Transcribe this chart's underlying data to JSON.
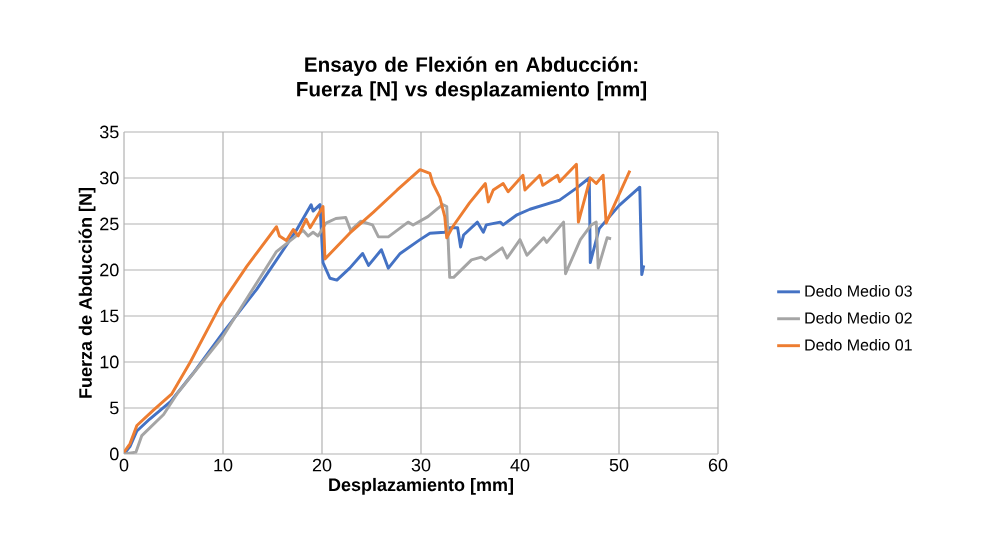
{
  "chart_data": {
    "type": "line",
    "title": "Ensayo de Flexión en Abducción: Fuerza [N] vs desplazamiento [mm]",
    "xlabel": "Desplazamiento [mm]",
    "ylabel": "Fuerza de Abducción [N]",
    "xlim": [
      0,
      60
    ],
    "xticks": [
      0,
      10,
      20,
      30,
      40,
      50,
      60
    ],
    "ylim": [
      0,
      35
    ],
    "yticks": [
      0,
      5,
      10,
      15,
      20,
      25,
      30,
      35
    ],
    "grid": true,
    "legend": "right",
    "marker": "none",
    "line_style": "solid",
    "series": [
      {
        "name": "Dedo Medio 03",
        "color": "#4472c4",
        "x": [
          0,
          0.6,
          1.3,
          2.6,
          4.7,
          7.0,
          10,
          13.4,
          16.1,
          17.4,
          18.9,
          19.1,
          19.8,
          20.1,
          20.8,
          21.5,
          22.8,
          24.1,
          24.7,
          26.0,
          26.7,
          27.9,
          29.9,
          30.9,
          32.4,
          32.9,
          33.7,
          34.0,
          34.3,
          35.7,
          36.3,
          36.6,
          38.0,
          38.3,
          39.7,
          41.0,
          44.0,
          45.7,
          47.0,
          47.1,
          48.0,
          50.0,
          52.1,
          52.3,
          52.5
        ],
        "values": [
          0,
          0.8,
          2.5,
          3.8,
          5.7,
          8.8,
          13.2,
          17.9,
          22.2,
          24.3,
          27.1,
          26.4,
          27.1,
          20.8,
          19.1,
          18.9,
          20.2,
          21.8,
          20.5,
          22.2,
          20.2,
          21.8,
          23.3,
          24.0,
          24.1,
          24.6,
          24.6,
          22.5,
          23.8,
          25.2,
          24.1,
          24.9,
          25.2,
          24.9,
          26.0,
          26.6,
          27.6,
          28.9,
          30.0,
          20.8,
          24.5,
          27.0,
          29.0,
          19.5,
          20.5
        ]
      },
      {
        "name": "Dedo Medio 02",
        "color": "#a5a5a5",
        "x": [
          0,
          1.2,
          1.8,
          4.0,
          5.4,
          10,
          15.4,
          18.1,
          18.6,
          19.1,
          19.6,
          20.4,
          21.4,
          22.4,
          22.9,
          23.9,
          25.1,
          25.7,
          26.7,
          28.7,
          29.2,
          30.7,
          31.7,
          32.2,
          32.6,
          32.9,
          33.3,
          35.1,
          36.1,
          36.5,
          38.2,
          38.7,
          40.0,
          40.7,
          42.4,
          42.7,
          44.4,
          44.6,
          46.1,
          47.2,
          47.7,
          47.9,
          48.8,
          49.2
        ],
        "values": [
          0,
          0.2,
          2.0,
          4.3,
          6.6,
          12.8,
          22.0,
          24.3,
          23.7,
          24.1,
          23.7,
          25.1,
          25.6,
          25.7,
          24.3,
          25.3,
          24.9,
          23.6,
          23.6,
          25.2,
          24.9,
          25.8,
          26.7,
          27.1,
          26.9,
          19.2,
          19.2,
          21.1,
          21.4,
          21.1,
          22.4,
          21.3,
          23.3,
          21.6,
          23.5,
          23.0,
          25.2,
          19.6,
          23.3,
          24.9,
          25.2,
          20.2,
          23.5,
          23.4
        ]
      },
      {
        "name": "Dedo Medio 01",
        "color": "#ed7d31",
        "x": [
          0,
          0.6,
          1.3,
          3.0,
          4.8,
          6.7,
          9.7,
          12.4,
          15.4,
          15.7,
          16.4,
          17.1,
          17.6,
          18.4,
          18.8,
          20.1,
          20.3,
          22.8,
          25.2,
          27.6,
          29.9,
          30.9,
          31.2,
          31.9,
          32.4,
          32.6,
          33.2,
          34.9,
          36.5,
          36.8,
          37.3,
          38.3,
          38.8,
          40.3,
          40.5,
          42.0,
          42.3,
          43.8,
          44.0,
          45.7,
          45.9,
          47.1,
          47.7,
          48.4,
          48.7,
          51.1
        ],
        "values": [
          0.2,
          1.1,
          3.1,
          4.8,
          6.5,
          10,
          16.1,
          20.4,
          24.7,
          23.7,
          23.2,
          24.4,
          23.7,
          25.5,
          24.6,
          26.9,
          21.2,
          24.0,
          26.3,
          28.7,
          30.9,
          30.5,
          29.4,
          27.9,
          25.8,
          23.5,
          24.7,
          27.3,
          29.4,
          27.4,
          28.7,
          29.4,
          28.5,
          30.3,
          28.7,
          30.3,
          29.2,
          30.3,
          29.6,
          31.5,
          25.2,
          30.0,
          29.4,
          30.3,
          25.1,
          30.8
        ]
      }
    ]
  }
}
